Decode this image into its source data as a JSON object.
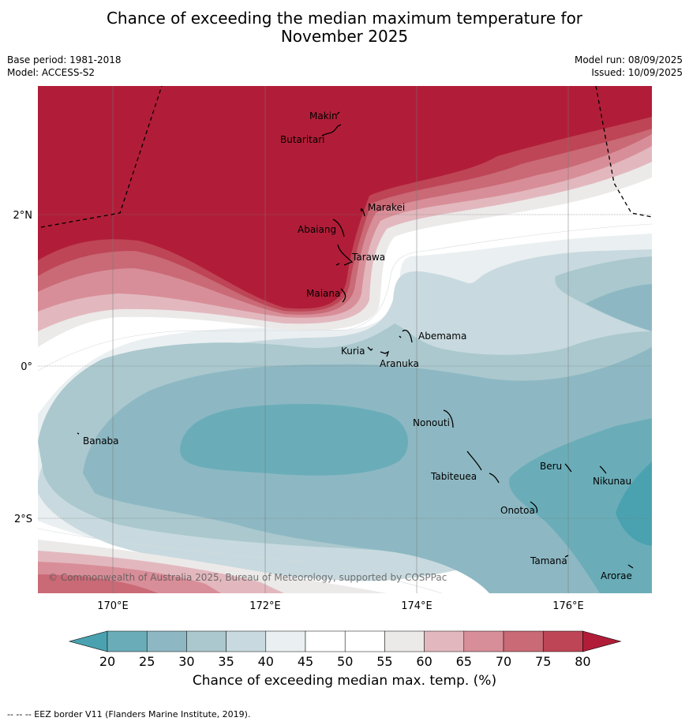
{
  "title_line1": "Chance of exceeding the median maximum temperature for",
  "title_line2": "November 2025",
  "base_period": "Base period: 1981-2018",
  "model": "Model: ACCESS-S2",
  "model_run": "Model run: 08/09/2025",
  "issued": "Issued: 10/09/2025",
  "copyright": "© Commonwealth of Australia 2025, Bureau of Meteorology, supported by COSPPac",
  "lat_labels": [
    "2°N",
    "0°",
    "2°S"
  ],
  "lon_labels": [
    "170°E",
    "172°E",
    "174°E",
    "176°E"
  ],
  "places": [
    {
      "name": "Makin"
    },
    {
      "name": "Butaritari"
    },
    {
      "name": "Marakei"
    },
    {
      "name": "Abaiang"
    },
    {
      "name": "Tarawa"
    },
    {
      "name": "Maiana"
    },
    {
      "name": "Abemama"
    },
    {
      "name": "Kuria"
    },
    {
      "name": "Aranuka"
    },
    {
      "name": "Nonouti"
    },
    {
      "name": "Banaba"
    },
    {
      "name": "Tabiteuea"
    },
    {
      "name": "Beru"
    },
    {
      "name": "Nikunau"
    },
    {
      "name": "Onotoa"
    },
    {
      "name": "Tamana"
    },
    {
      "name": "Arorae"
    }
  ],
  "colorbar": {
    "ticks": [
      "20",
      "25",
      "30",
      "35",
      "40",
      "45",
      "50",
      "55",
      "60",
      "65",
      "70",
      "75",
      "80"
    ],
    "colors": [
      "#6aadb8",
      "#8db8c3",
      "#aac8ce",
      "#c8dadf",
      "#eaeff1",
      "#ffffff",
      "#ffffff",
      "#ece9e9",
      "#e2b8be",
      "#d88e98",
      "#c96a76",
      "#be4555"
    ],
    "low_color": "#4aa2b0",
    "high_color": "#b11d38",
    "label": "Chance of exceeding median max. temp. (%)"
  },
  "footer": "-- -- -- EEZ border V11 (Flanders Marine Institute, 2019)."
}
